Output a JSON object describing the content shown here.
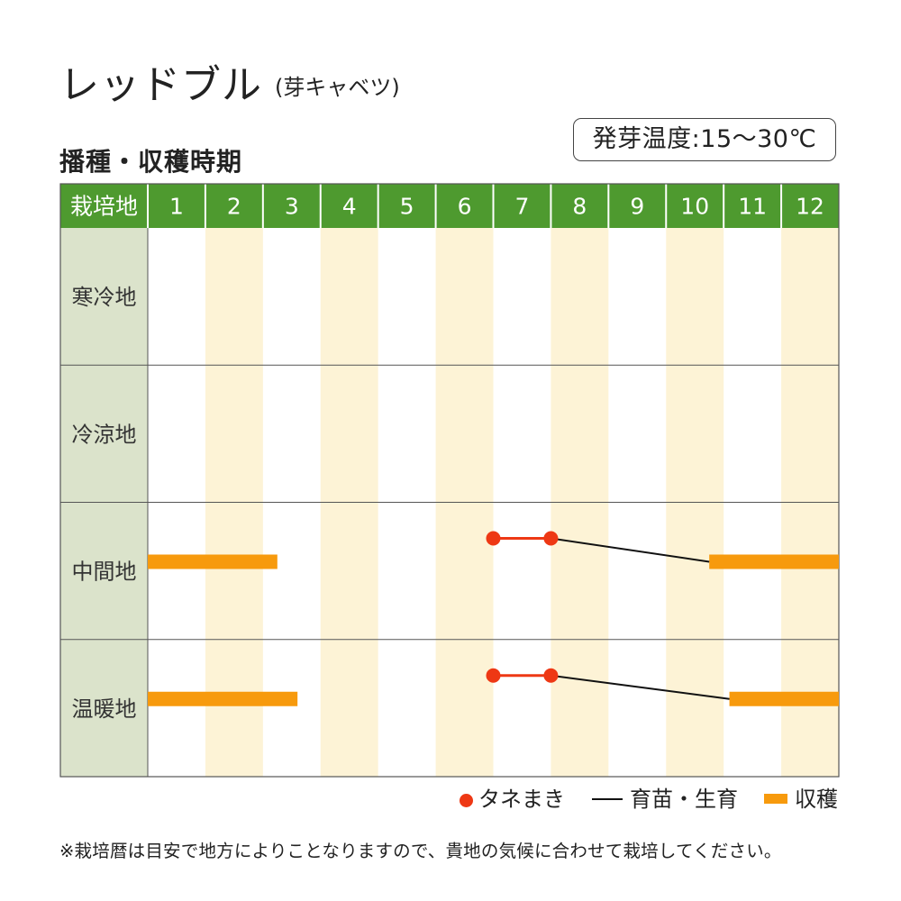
{
  "header": {
    "title": "レッドブル",
    "subtitle": "(芽キャベツ)",
    "section_title": "播種・収穫時期",
    "temperature_badge": "発芽温度:15～30℃"
  },
  "colors": {
    "header_green": "#4e9a2f",
    "label_column_bg": "#dbe3cb",
    "alternate_column_bg": "#fdf3d6",
    "sowing_dot": "#ee3814",
    "growing_line": "#111111",
    "harvest_bar": "#f79a0d",
    "grid_line": "#555555"
  },
  "chart_data": {
    "type": "table",
    "header_label": "栽培地",
    "months": [
      "1",
      "2",
      "3",
      "4",
      "5",
      "6",
      "7",
      "8",
      "9",
      "10",
      "11",
      "12"
    ],
    "regions": [
      {
        "name": "寒冷地",
        "sowing": [],
        "growing": [],
        "harvest": []
      },
      {
        "name": "冷涼地",
        "sowing": [],
        "growing": [],
        "harvest": []
      },
      {
        "name": "中間地",
        "sowing": [
          [
            7.0,
            8.0
          ]
        ],
        "growing": [
          [
            8.0,
            10.75
          ]
        ],
        "harvest": [
          [
            1.0,
            3.25
          ],
          [
            10.75,
            13.0
          ]
        ]
      },
      {
        "name": "温暖地",
        "sowing": [
          [
            7.0,
            8.0
          ]
        ],
        "growing": [
          [
            8.0,
            11.1
          ]
        ],
        "harvest": [
          [
            1.0,
            3.6
          ],
          [
            11.1,
            13.0
          ]
        ]
      }
    ]
  },
  "legend": {
    "sowing": "タネまき",
    "growing": "育苗・生育",
    "harvest": "収穫"
  },
  "footnote": "※栽培暦は目安で地方によりことなりますので、貴地の気候に合わせて栽培してください。"
}
